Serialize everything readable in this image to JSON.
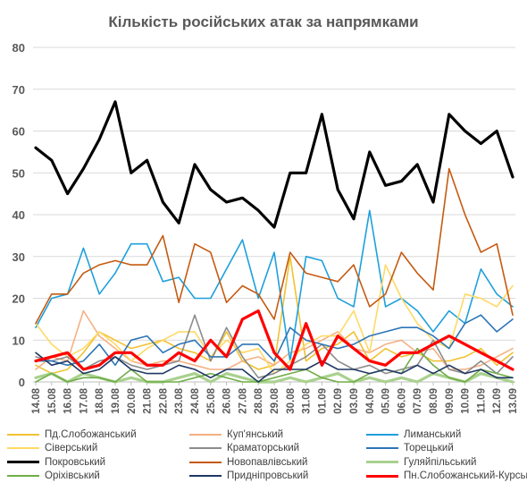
{
  "chart_data": {
    "type": "line",
    "title": "Кількість російських атак за напрямками",
    "xlabel": "",
    "ylabel": "",
    "ylim": [
      0,
      80
    ],
    "yticks": [
      0,
      10,
      20,
      30,
      40,
      50,
      60,
      70,
      80
    ],
    "grid": "horizontal",
    "legend_position": "bottom",
    "categories": [
      "14.08",
      "15.08",
      "16.08",
      "17.08",
      "18.08",
      "19.08",
      "20.08",
      "21.08",
      "22.08",
      "23.08",
      "24.08",
      "25.08",
      "26.08",
      "27.08",
      "28.08",
      "29.08",
      "30.08",
      "31.08",
      "01.09",
      "02.09",
      "03.09",
      "04.09",
      "05.09",
      "06.09",
      "07.09",
      "08.09",
      "09.09",
      "10.09",
      "11.09",
      "12.09",
      "13.09"
    ],
    "series": [
      {
        "name": "Пд.Слобожанський",
        "color": "#f1c232",
        "width": 1.6,
        "values": [
          4,
          2,
          3,
          7,
          12,
          10,
          8,
          9,
          10,
          8,
          7,
          5,
          12,
          5,
          3,
          4,
          30,
          5,
          8,
          9,
          12,
          5,
          8,
          6,
          7,
          5,
          5,
          6,
          8,
          4,
          7
        ]
      },
      {
        "name": "Куп'янський",
        "color": "#f4b183",
        "width": 1.6,
        "values": [
          3,
          6,
          5,
          17,
          11,
          8,
          5,
          4,
          5,
          5,
          4,
          3,
          3,
          5,
          6,
          4,
          7,
          8,
          10,
          12,
          8,
          7,
          9,
          10,
          7,
          8,
          3,
          3,
          4,
          6,
          8
        ]
      },
      {
        "name": "Лиманський",
        "color": "#1ea0dc",
        "width": 1.6,
        "values": [
          13,
          20,
          21,
          32,
          21,
          26,
          33,
          33,
          24,
          25,
          20,
          20,
          27,
          34,
          20,
          31,
          5,
          30,
          29,
          20,
          18,
          41,
          18,
          20,
          17,
          12,
          17,
          14,
          27,
          21,
          18
        ]
      },
      {
        "name": "Сіверський",
        "color": "#ffd966",
        "width": 1.6,
        "values": [
          14,
          9,
          6,
          8,
          12,
          9,
          5,
          8,
          10,
          12,
          12,
          6,
          10,
          7,
          8,
          2,
          5,
          9,
          11,
          11,
          17,
          7,
          28,
          20,
          14,
          10,
          8,
          21,
          20,
          18,
          23
        ]
      },
      {
        "name": "Краматорський",
        "color": "#8c8c8c",
        "width": 1.6,
        "values": [
          6,
          5,
          6,
          3,
          5,
          6,
          4,
          3,
          4,
          5,
          16,
          5,
          13,
          6,
          1,
          2,
          4,
          6,
          9,
          5,
          3,
          4,
          2,
          3,
          4,
          10,
          3,
          2,
          5,
          2,
          6
        ]
      },
      {
        "name": "Торецький",
        "color": "#2e75b6",
        "width": 1.6,
        "values": [
          5,
          5,
          4,
          5,
          9,
          4,
          10,
          11,
          7,
          9,
          10,
          6,
          6,
          9,
          9,
          5,
          13,
          10,
          9,
          8,
          9,
          11,
          12,
          13,
          13,
          11,
          8,
          14,
          16,
          12,
          15
        ]
      },
      {
        "name": "Покровський",
        "color": "#000000",
        "width": 3.2,
        "values": [
          56,
          53,
          45,
          51,
          58,
          67,
          50,
          53,
          43,
          38,
          52,
          46,
          43,
          44,
          41,
          37,
          50,
          50,
          64,
          46,
          39,
          55,
          47,
          48,
          52,
          43,
          64,
          60,
          57,
          60,
          49
        ]
      },
      {
        "name": "Новопавлівський",
        "color": "#c55a11",
        "width": 1.6,
        "values": [
          14,
          21,
          21,
          26,
          28,
          29,
          28,
          28,
          35,
          19,
          33,
          31,
          19,
          23,
          21,
          15,
          31,
          26,
          25,
          24,
          28,
          18,
          21,
          31,
          26,
          22,
          51,
          40,
          31,
          33,
          16
        ]
      },
      {
        "name": "Гуляйпільський",
        "color": "#a9d18e",
        "width": 3.2,
        "values": [
          1,
          2,
          0,
          2,
          1,
          0,
          1,
          0,
          0,
          1,
          2,
          0,
          2,
          1,
          0,
          0,
          1,
          0,
          1,
          2,
          0,
          1,
          0,
          1,
          0,
          2,
          1,
          0,
          2,
          1,
          0
        ]
      },
      {
        "name": "Оріхівський",
        "color": "#70ad47",
        "width": 1.6,
        "values": [
          0,
          2,
          0,
          1,
          1,
          0,
          3,
          0,
          0,
          0,
          1,
          2,
          1,
          0,
          0,
          1,
          2,
          3,
          1,
          0,
          0,
          2,
          3,
          2,
          8,
          4,
          1,
          0,
          3,
          2,
          1
        ]
      },
      {
        "name": "Придніпровський",
        "color": "#1f3864",
        "width": 1.6,
        "values": [
          7,
          4,
          5,
          2,
          3,
          6,
          3,
          2,
          2,
          4,
          3,
          1,
          3,
          3,
          0,
          3,
          3,
          3,
          5,
          3,
          3,
          2,
          3,
          2,
          4,
          2,
          4,
          2,
          3,
          1,
          1
        ]
      },
      {
        "name": "Пн.Слобожанський-Курський",
        "color": "#ff0000",
        "width": 3.2,
        "values": [
          5,
          6,
          7,
          3,
          4,
          7,
          7,
          4,
          4,
          7,
          5,
          10,
          6,
          15,
          17,
          7,
          3,
          14,
          4,
          11,
          8,
          5,
          4,
          7,
          7,
          9,
          11,
          9,
          7,
          5,
          3
        ]
      }
    ]
  }
}
